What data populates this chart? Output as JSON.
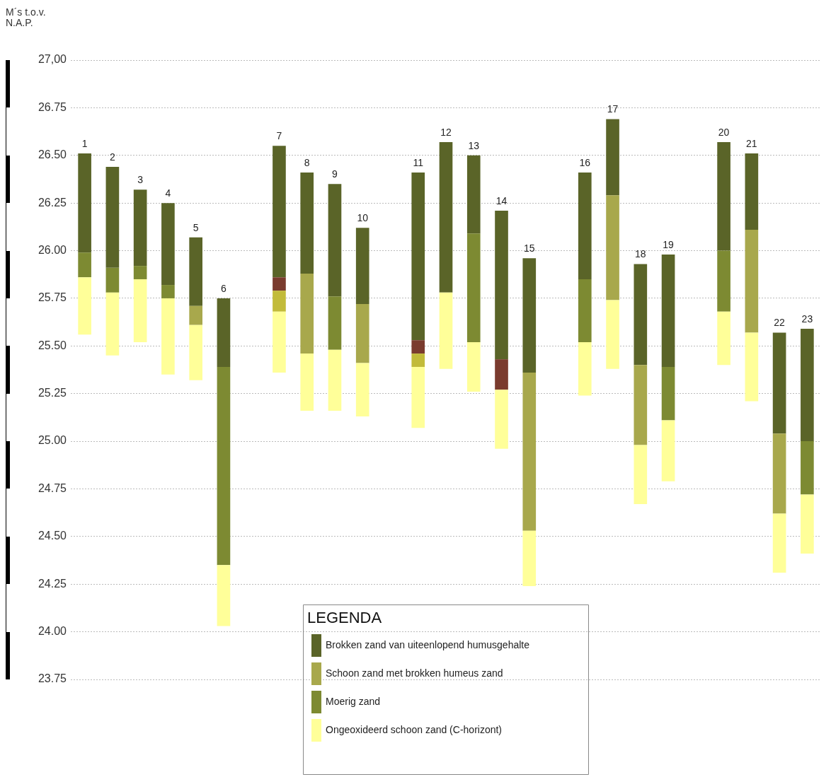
{
  "chart_data": {
    "type": "bar",
    "ylabel": "M´s t.o.v. N.A.P.",
    "legend_title": "LEGENDA",
    "categories": [
      "1",
      "2",
      "3",
      "4",
      "5",
      "6",
      null,
      "7",
      "8",
      "9",
      "10",
      null,
      "11",
      "12",
      "13",
      "14",
      "15",
      null,
      "16",
      "17",
      "18",
      "19",
      null,
      "20",
      "21",
      "22",
      "23"
    ],
    "series": [
      {
        "name": "Ongeoxideerd schoon zand (C-horizont)",
        "color": "#ffff99",
        "base": [
          25.56,
          25.45,
          25.52,
          25.35,
          25.32,
          24.03,
          null,
          25.36,
          25.16,
          25.16,
          25.13,
          null,
          25.07,
          25.38,
          25.26,
          24.96,
          24.24,
          null,
          25.24,
          25.38,
          24.67,
          24.79,
          null,
          25.4,
          25.21,
          24.31,
          24.41
        ],
        "values": [
          0.3,
          0.33,
          0.33,
          0.4,
          0.29,
          0.32,
          null,
          0.32,
          0.3,
          0.32,
          0.28,
          null,
          0.32,
          0.4,
          0.26,
          0.31,
          0.29,
          null,
          0.28,
          0.36,
          0.31,
          0.32,
          null,
          0.28,
          0.36,
          0.31,
          0.31
        ]
      },
      {
        "color": "#c2bb3a",
        "base": [
          null,
          null,
          null,
          null,
          null,
          null,
          null,
          25.68,
          null,
          null,
          null,
          null,
          25.39,
          null,
          null,
          null,
          null,
          null,
          null,
          null,
          null,
          null,
          null,
          null,
          null,
          null,
          null
        ],
        "values": [
          null,
          null,
          null,
          null,
          null,
          null,
          null,
          0.11,
          null,
          null,
          null,
          null,
          0.07,
          null,
          null,
          null,
          null,
          null,
          null,
          null,
          null,
          null,
          null,
          null,
          null,
          null,
          null
        ]
      },
      {
        "color": "#7a3b2e",
        "base": [
          null,
          null,
          null,
          null,
          null,
          null,
          null,
          25.79,
          null,
          null,
          null,
          null,
          25.46,
          null,
          null,
          25.27,
          null,
          null,
          null,
          null,
          null,
          null,
          null,
          null,
          null,
          null,
          null
        ],
        "values": [
          null,
          null,
          null,
          null,
          null,
          null,
          null,
          0.07,
          null,
          null,
          null,
          null,
          0.07,
          null,
          null,
          0.16,
          null,
          null,
          null,
          null,
          null,
          null,
          null,
          null,
          null,
          null,
          null
        ]
      },
      {
        "name": "Moerig zand",
        "color": "#7d8a32",
        "base": [
          25.86,
          25.78,
          25.85,
          25.75,
          null,
          24.35,
          null,
          null,
          null,
          25.48,
          null,
          null,
          null,
          null,
          25.52,
          null,
          null,
          null,
          25.52,
          null,
          null,
          25.11,
          null,
          25.68,
          null,
          null,
          24.72
        ],
        "values": [
          0.13,
          0.13,
          0.07,
          0.07,
          null,
          1.04,
          null,
          null,
          null,
          0.28,
          null,
          null,
          null,
          null,
          0.57,
          null,
          null,
          null,
          0.33,
          null,
          null,
          0.28,
          null,
          0.32,
          null,
          null,
          0.28
        ]
      },
      {
        "name": "Schoon zand met brokken humeus zand",
        "color": "#a8a84c",
        "base": [
          null,
          null,
          null,
          null,
          25.61,
          null,
          null,
          null,
          25.46,
          null,
          25.41,
          null,
          null,
          null,
          null,
          null,
          24.53,
          null,
          null,
          25.74,
          24.98,
          null,
          null,
          null,
          25.57,
          24.62,
          null
        ],
        "values": [
          null,
          null,
          null,
          null,
          0.1,
          null,
          null,
          null,
          0.42,
          null,
          0.31,
          null,
          null,
          null,
          null,
          null,
          0.83,
          null,
          null,
          0.55,
          0.42,
          null,
          null,
          null,
          0.54,
          0.42,
          null
        ]
      },
      {
        "name": "Brokken zand van uiteenlopend humusgehalte",
        "color": "#5a6428",
        "base": [
          25.99,
          25.91,
          25.92,
          25.82,
          25.71,
          25.39,
          null,
          25.86,
          25.88,
          25.76,
          25.72,
          null,
          25.53,
          25.78,
          26.09,
          25.43,
          25.36,
          null,
          25.85,
          26.29,
          25.4,
          25.39,
          null,
          26.0,
          26.11,
          25.04,
          25.0
        ],
        "values": [
          0.52,
          0.53,
          0.4,
          0.43,
          0.36,
          0.36,
          null,
          0.69,
          0.53,
          0.59,
          0.4,
          null,
          0.88,
          0.79,
          0.41,
          0.78,
          0.6,
          null,
          0.56,
          0.4,
          0.53,
          0.59,
          null,
          0.57,
          0.4,
          0.53,
          0.59
        ]
      }
    ],
    "ylim": [
      23.75,
      27
    ],
    "yticks": [
      {
        "value": 27,
        "label": "27,00"
      },
      {
        "value": 26.75,
        "label": "26.75"
      },
      {
        "value": 26.5,
        "label": "26.50"
      },
      {
        "value": 26.25,
        "label": "26.25"
      },
      {
        "value": 26,
        "label": "26.00"
      },
      {
        "value": 25.75,
        "label": "25.75"
      },
      {
        "value": 25.5,
        "label": "25.50"
      },
      {
        "value": 25.25,
        "label": "25.25"
      },
      {
        "value": 25,
        "label": "25.00"
      },
      {
        "value": 24.75,
        "label": "24.75"
      },
      {
        "value": 24.5,
        "label": "24.50"
      },
      {
        "value": 24.25,
        "label": "24.25"
      },
      {
        "value": 24,
        "label": "24.00"
      },
      {
        "value": 23.75,
        "label": "23.75"
      }
    ],
    "grid": "y",
    "legend": "bottom"
  }
}
